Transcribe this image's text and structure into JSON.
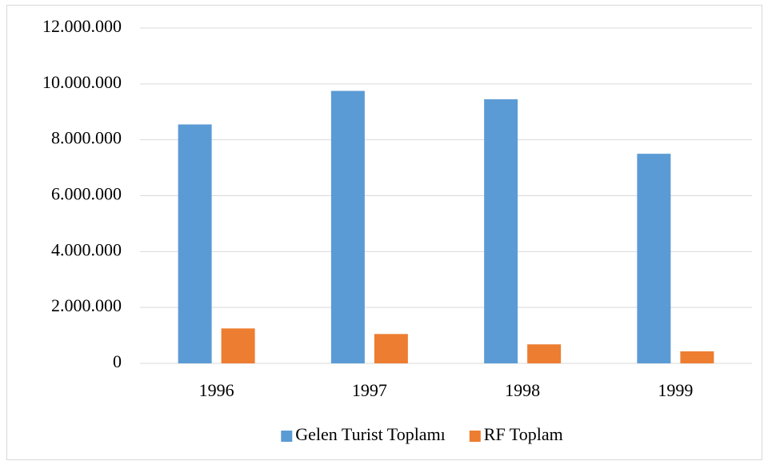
{
  "chart_data": {
    "type": "bar",
    "categories": [
      "1996",
      "1997",
      "1998",
      "1999"
    ],
    "series": [
      {
        "name": "Gelen Turist Toplamı",
        "color": "#5b9bd5",
        "values": [
          8550000,
          9750000,
          9450000,
          7500000
        ]
      },
      {
        "name": "RF Toplam",
        "color": "#ed7d31",
        "values": [
          1250000,
          1050000,
          680000,
          430000
        ]
      }
    ],
    "ylim": [
      0,
      12000000
    ],
    "yticks": [
      0,
      {
        "value": 2000000,
        "label": "2.000.000"
      },
      {
        "value": 4000000,
        "label": "4.000.000"
      },
      {
        "value": 6000000,
        "label": "6.000.000"
      },
      {
        "value": 8000000,
        "label": "8.000.000"
      },
      {
        "value": 10000000,
        "label": "10.000.000"
      },
      {
        "value": 12000000,
        "label": "12.000.000"
      }
    ],
    "grid": true,
    "legend": "bottom"
  }
}
